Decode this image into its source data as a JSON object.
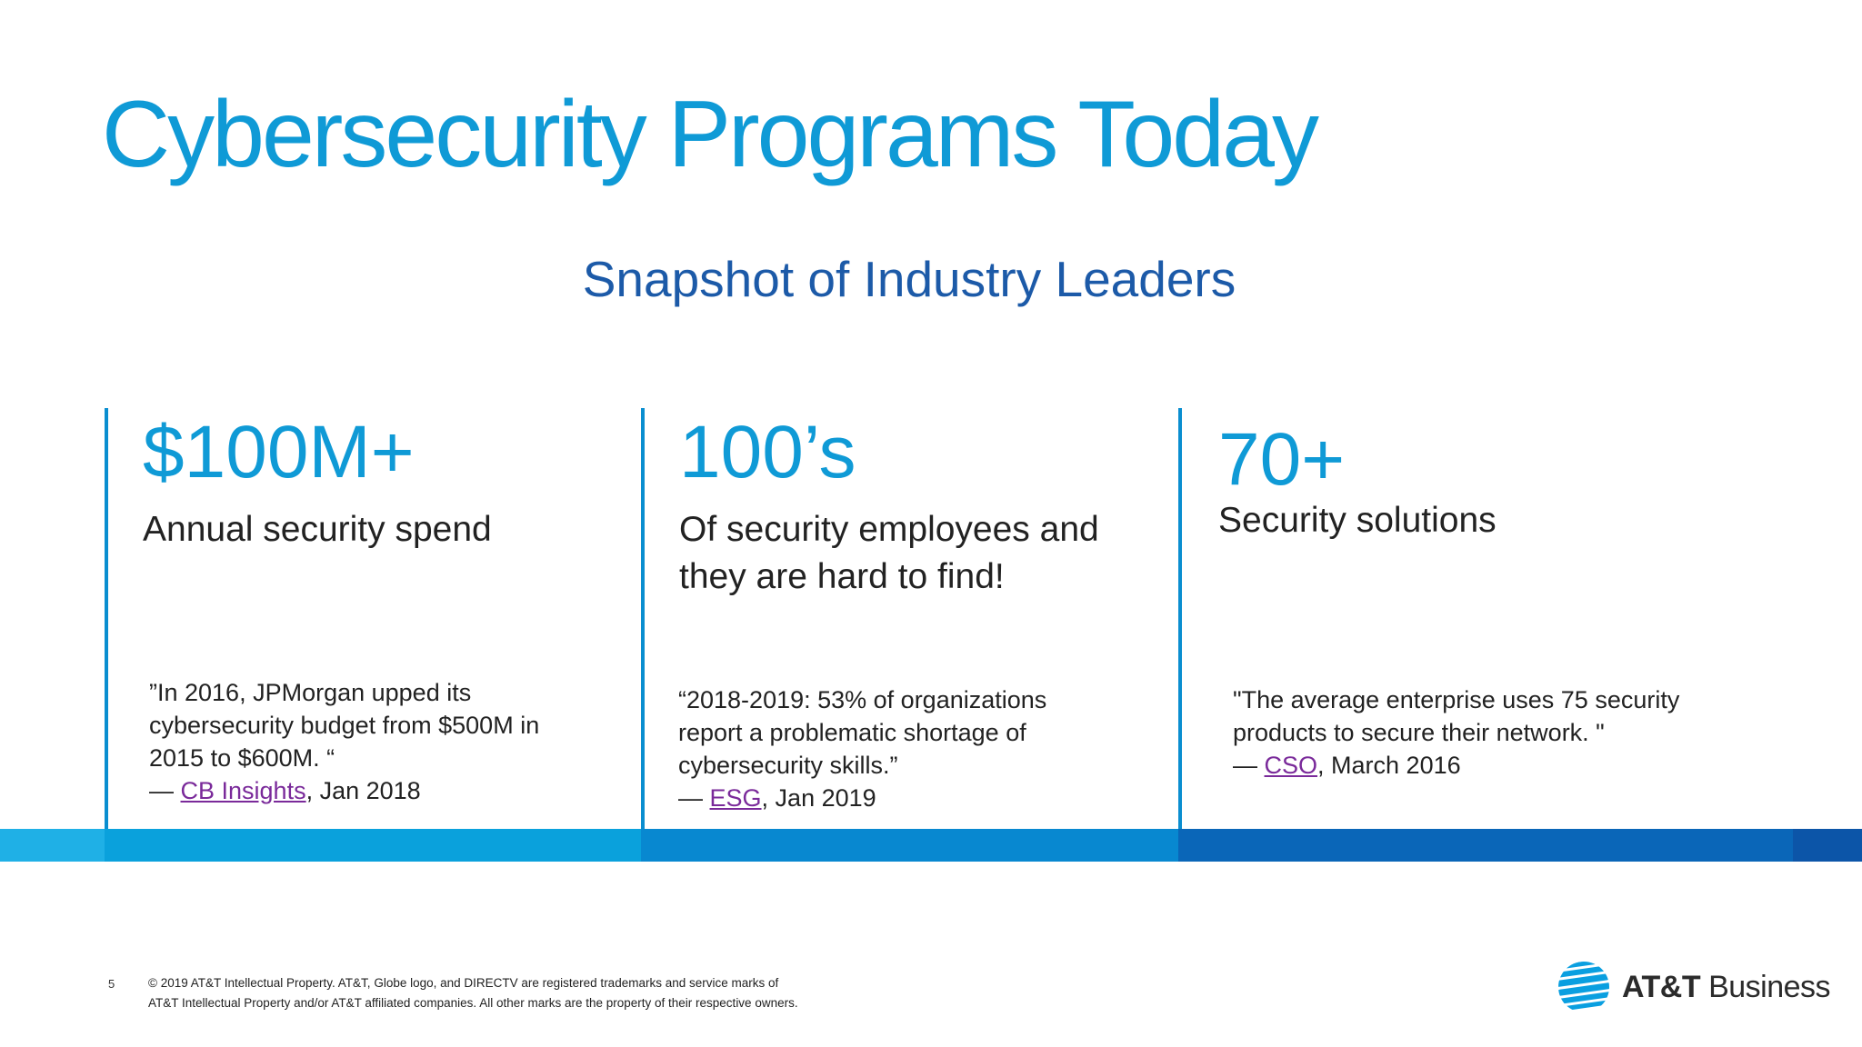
{
  "slide": {
    "title": "Cybersecurity Programs Today",
    "subtitle": "Snapshot of Industry Leaders",
    "columns": [
      {
        "metric": "$100M+",
        "label": "Annual security spend",
        "quote": "”In 2016, JPMorgan upped its cybersecurity budget from $500M in 2015 to $600M. “",
        "cite_dash": "—",
        "cite_source": "CB Insights",
        "cite_date": ", Jan 2018"
      },
      {
        "metric": "100’s",
        "label": "Of security employees and they are hard to find!",
        "quote": "“2018-2019: 53% of organizations report a problematic shortage of cybersecurity skills.”",
        "cite_dash": "—",
        "cite_source": "ESG",
        "cite_date": ", Jan 2019"
      },
      {
        "metric": "70+",
        "label": "Security solutions",
        "quote": "\"The average enterprise uses 75 security products to secure their network. \"",
        "cite_dash": "—",
        "cite_source": "CSO",
        "cite_date": ", March 2016"
      }
    ]
  },
  "footer": {
    "page_number": "5",
    "legal_line1": "© 2019 AT&T Intellectual Property. AT&T, Globe logo, and DIRECTV are registered trademarks and service marks of",
    "legal_line2": "AT&T Intellectual Property and/or AT&T affiliated companies. All other marks are the property of their respective owners.",
    "brand_bold": "AT&T",
    "brand_rest": " Business",
    "logo_icon": "att-globe-icon"
  },
  "colors": {
    "title": "#0f9ad6",
    "subtitle": "#1c5aa8",
    "link": "#7a2a9a",
    "band": [
      "#1fb0e6",
      "#0aa1dc",
      "#0888d0",
      "#0a66b8",
      "#0c55a8"
    ]
  }
}
